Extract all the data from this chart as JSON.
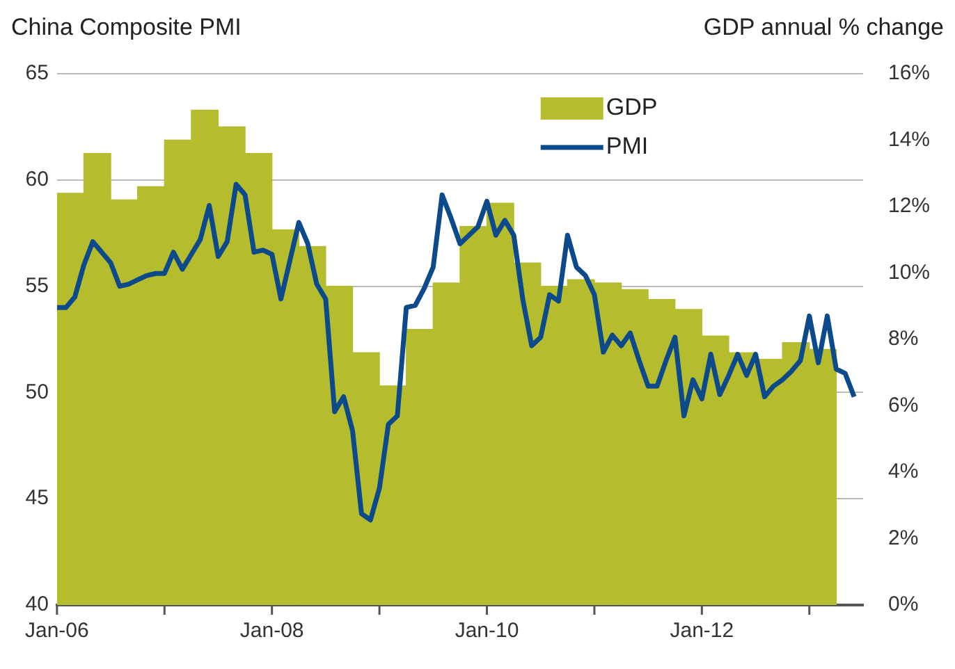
{
  "chart_data": {
    "type": "line",
    "ylabel": "China Composite PMI",
    "y2label": "GDP annual % change",
    "x": [
      "2006-01",
      "2006-02",
      "2006-03",
      "2006-04",
      "2006-05",
      "2006-06",
      "2006-07",
      "2006-08",
      "2006-09",
      "2006-10",
      "2006-11",
      "2006-12",
      "2007-01",
      "2007-02",
      "2007-03",
      "2007-04",
      "2007-05",
      "2007-06",
      "2007-07",
      "2007-08",
      "2007-09",
      "2007-10",
      "2007-11",
      "2007-12",
      "2008-01",
      "2008-02",
      "2008-03",
      "2008-04",
      "2008-05",
      "2008-06",
      "2008-07",
      "2008-08",
      "2008-09",
      "2008-10",
      "2008-11",
      "2008-12",
      "2009-01",
      "2009-02",
      "2009-03",
      "2009-04",
      "2009-05",
      "2009-06",
      "2009-07",
      "2009-08",
      "2009-09",
      "2009-10",
      "2009-11",
      "2009-12",
      "2010-01",
      "2010-02",
      "2010-03",
      "2010-04",
      "2010-05",
      "2010-06",
      "2010-07",
      "2010-08",
      "2010-09",
      "2010-10",
      "2010-11",
      "2010-12",
      "2011-01",
      "2011-02",
      "2011-03",
      "2011-04",
      "2011-05",
      "2011-06",
      "2011-07",
      "2011-08",
      "2011-09",
      "2011-10",
      "2011-11",
      "2011-12",
      "2012-01",
      "2012-02",
      "2012-03",
      "2012-04",
      "2012-05",
      "2012-06",
      "2012-07",
      "2012-08",
      "2012-09",
      "2012-10",
      "2012-11",
      "2012-12",
      "2013-01",
      "2013-02",
      "2013-03",
      "2013-04",
      "2013-05",
      "2013-06"
    ],
    "series": [
      {
        "name": "GDP",
        "type": "bar",
        "axis": "y2",
        "color": "#b5bd2e",
        "x": [
          "2006-02-16",
          "2006-05-16",
          "2006-08-16",
          "2006-11-16",
          "2007-02-16",
          "2007-05-16",
          "2007-08-16",
          "2007-11-16",
          "2008-02-16",
          "2008-05-16",
          "2008-08-16",
          "2008-11-16",
          "2009-02-16",
          "2009-05-16",
          "2009-08-16",
          "2009-11-16",
          "2010-02-16",
          "2010-05-16",
          "2010-08-16",
          "2010-11-16",
          "2011-02-16",
          "2011-05-16",
          "2011-08-16",
          "2011-11-16",
          "2012-02-16",
          "2012-05-16",
          "2012-08-16",
          "2012-11-16",
          "2013-02-16"
        ],
        "values": [
          12.4,
          13.6,
          12.2,
          12.6,
          14.0,
          14.9,
          14.4,
          13.6,
          11.3,
          10.8,
          9.6,
          7.6,
          6.6,
          8.3,
          9.7,
          11.4,
          12.1,
          10.3,
          9.6,
          9.8,
          9.7,
          9.5,
          9.2,
          8.9,
          8.1,
          7.6,
          7.4,
          7.9,
          7.7
        ]
      },
      {
        "name": "PMI",
        "color": "#0c4a8c",
        "values": [
          54.0,
          54.0,
          54.5,
          56.0,
          57.1,
          56.6,
          56.1,
          55.0,
          55.1,
          55.3,
          55.5,
          55.6,
          55.6,
          56.6,
          55.8,
          56.5,
          57.2,
          58.8,
          56.4,
          57.1,
          59.8,
          59.3,
          56.6,
          56.7,
          56.5,
          54.4,
          56.2,
          58.0,
          57.0,
          55.1,
          54.4,
          49.1,
          49.8,
          48.2,
          44.3,
          44.0,
          45.5,
          48.5,
          48.9,
          54.0,
          54.1,
          54.9,
          55.9,
          59.3,
          58.2,
          57.0,
          57.4,
          57.8,
          59.0,
          57.4,
          58.1,
          57.4,
          54.4,
          52.2,
          52.6,
          54.6,
          54.3,
          57.4,
          55.9,
          55.5,
          54.6,
          51.9,
          52.7,
          52.2,
          52.8,
          51.5,
          50.3,
          50.3,
          51.5,
          52.6,
          48.9,
          50.6,
          49.7,
          51.8,
          49.9,
          50.8,
          51.8,
          50.8,
          51.8,
          49.8,
          50.3,
          50.6,
          51.0,
          51.5,
          53.6,
          51.4,
          53.6,
          51.1,
          50.9,
          49.8
        ]
      }
    ],
    "xlim": [
      "2006-01",
      "2013-07"
    ],
    "xticks": [
      {
        "value": "2006-01",
        "label": "Jan-06"
      },
      {
        "value": "2007-01",
        "label": null
      },
      {
        "value": "2008-01",
        "label": "Jan-08"
      },
      {
        "value": "2009-01",
        "label": null
      },
      {
        "value": "2010-01",
        "label": "Jan-10"
      },
      {
        "value": "2011-01",
        "label": null
      },
      {
        "value": "2012-01",
        "label": "Jan-12"
      },
      {
        "value": "2013-01",
        "label": null
      }
    ],
    "ylim": [
      40,
      65
    ],
    "yticks": [
      40,
      45,
      50,
      55,
      60,
      65
    ],
    "y2lim": [
      0,
      16
    ],
    "y2ticks": [
      {
        "value": 0,
        "label": "0%"
      },
      {
        "value": 2,
        "label": "2%"
      },
      {
        "value": 4,
        "label": "4%"
      },
      {
        "value": 6,
        "label": "6%"
      },
      {
        "value": 8,
        "label": "8%"
      },
      {
        "value": 10,
        "label": "10%"
      },
      {
        "value": 12,
        "label": "12%"
      },
      {
        "value": 14,
        "label": "14%"
      },
      {
        "value": 16,
        "label": "16%"
      }
    ],
    "grid": "y",
    "legend": "top right",
    "marker": "none",
    "line_style": "solid"
  }
}
